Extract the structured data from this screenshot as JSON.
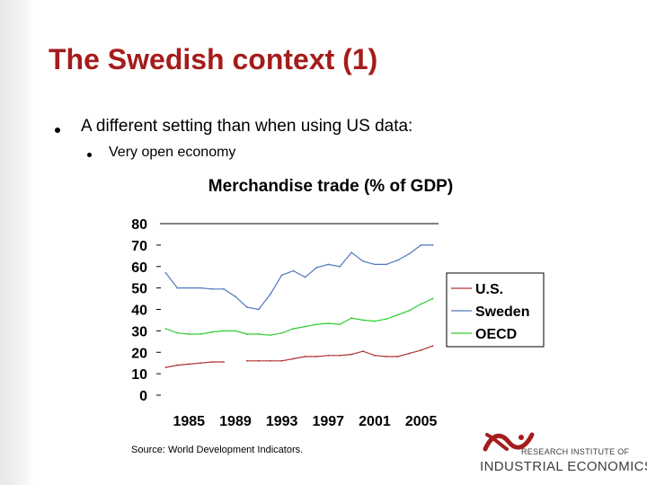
{
  "slide": {
    "title": "The Swedish context (1)",
    "bullet_1": "A different setting than when using US data:",
    "bullet_2": "Very open economy",
    "source": "Source: World Development Indicators."
  },
  "logo": {
    "line1": "RESEARCH INSTITUTE OF",
    "line2": "INDUSTRIAL ECONOMICS",
    "color": "#a51c1c"
  },
  "colors": {
    "title": "#a51c1c",
    "us": "#b23232",
    "sweden": "#5077bb",
    "oecd": "#33cc33"
  },
  "chart_data": {
    "type": "line",
    "title": "Merchandise trade (% of GDP)",
    "xlabel": "",
    "ylabel": "",
    "x": [
      1983,
      1984,
      1985,
      1986,
      1987,
      1988,
      1989,
      1990,
      1991,
      1992,
      1993,
      1994,
      1995,
      1996,
      1997,
      1998,
      1999,
      2000,
      2001,
      2002,
      2003,
      2004,
      2005,
      2006
    ],
    "x_ticks": [
      1985,
      1989,
      1993,
      1997,
      2001,
      2005
    ],
    "xlim": [
      1982.5,
      2006.5
    ],
    "y_ticks": [
      0,
      10,
      20,
      30,
      40,
      50,
      60,
      70,
      80
    ],
    "ylim": [
      0,
      80
    ],
    "grid": false,
    "legend_position": "right",
    "series": [
      {
        "name": "U.S.",
        "color": "#b23232",
        "values": [
          13,
          14,
          14.5,
          15,
          15.5,
          15.5,
          null,
          16,
          16,
          16,
          16,
          17,
          18,
          18,
          18.5,
          18.5,
          19,
          20.5,
          18.5,
          18,
          18,
          19.5,
          21,
          23
        ]
      },
      {
        "name": "Sweden",
        "color": "#5077bb",
        "values": [
          57,
          50,
          50,
          50,
          49.5,
          49.5,
          46,
          41,
          40,
          47,
          56,
          58,
          55,
          59.5,
          61,
          60,
          66.5,
          62.5,
          61,
          61,
          63,
          66,
          70,
          70
        ]
      },
      {
        "name": "OECD",
        "color": "#33cc33",
        "values": [
          31,
          29,
          28.5,
          28.5,
          29.5,
          30,
          30,
          28.5,
          28.5,
          28,
          29,
          31,
          32,
          33,
          33.5,
          33,
          36,
          35,
          34.5,
          35.5,
          37.5,
          39.5,
          42.5,
          45
        ]
      }
    ]
  }
}
